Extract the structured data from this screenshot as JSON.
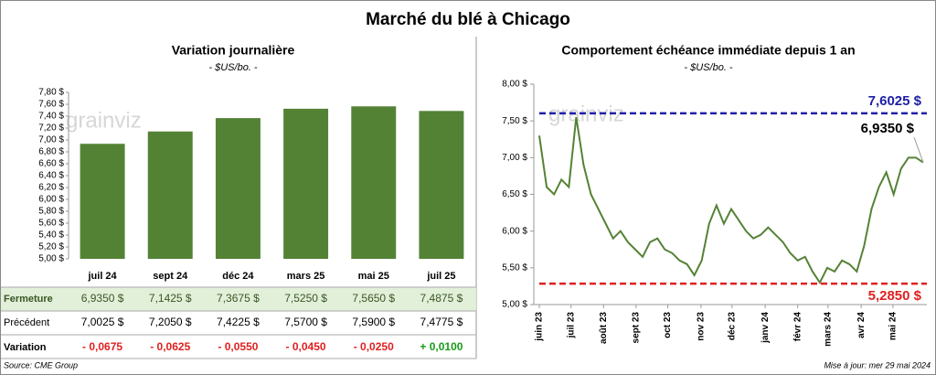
{
  "title": "Marché du blé à Chicago",
  "watermark": "grainviz",
  "chart_data": [
    {
      "type": "bar",
      "title": "Variation journalière",
      "subtitle": "- $US/bo. -",
      "categories": [
        "juil 24",
        "sept 24",
        "déc 24",
        "mars 25",
        "mai 25",
        "juil 25"
      ],
      "values": [
        6.935,
        7.1425,
        7.3675,
        7.525,
        7.565,
        7.4875
      ],
      "value_labels": [
        "6,9350  $",
        "7,1425  $",
        "7,3675  $",
        "7,5250  $",
        "7,5650  $",
        "7,4875  $"
      ],
      "color": "#548235",
      "ylim": [
        5.0,
        7.8
      ],
      "yticks": [
        {
          "value": 5.0,
          "label": "5,00 $"
        },
        {
          "value": 5.2,
          "label": "5,20 $"
        },
        {
          "value": 5.4,
          "label": "5,40 $"
        },
        {
          "value": 5.6,
          "label": "5,60 $"
        },
        {
          "value": 5.8,
          "label": "5,80 $"
        },
        {
          "value": 6.0,
          "label": "6,00 $"
        },
        {
          "value": 6.2,
          "label": "6,20 $"
        },
        {
          "value": 6.4,
          "label": "6,40 $"
        },
        {
          "value": 6.6,
          "label": "6,60 $"
        },
        {
          "value": 6.8,
          "label": "6,80 $"
        },
        {
          "value": 7.0,
          "label": "7,00 $"
        },
        {
          "value": 7.2,
          "label": "7,20 $"
        },
        {
          "value": 7.4,
          "label": "7,40 $"
        },
        {
          "value": 7.6,
          "label": "7,60 $"
        },
        {
          "value": 7.8,
          "label": "7,80 $"
        }
      ],
      "grid": false
    },
    {
      "type": "line",
      "title": "Comportement  échéance immédiate depuis 1 an",
      "subtitle": "- $US/bo. -",
      "series": [
        {
          "name": "Échéance immédiate",
          "color": "#548235",
          "values": [
            7.3,
            6.6,
            6.5,
            6.7,
            6.6,
            7.55,
            6.9,
            6.5,
            6.3,
            6.1,
            5.9,
            6.0,
            5.85,
            5.75,
            5.65,
            5.85,
            5.9,
            5.75,
            5.7,
            5.6,
            5.55,
            5.4,
            5.6,
            6.1,
            6.35,
            6.1,
            6.3,
            6.15,
            6.0,
            5.9,
            5.95,
            6.05,
            5.95,
            5.85,
            5.7,
            5.6,
            5.65,
            5.45,
            5.3,
            5.5,
            5.45,
            5.6,
            5.55,
            5.45,
            5.8,
            6.3,
            6.6,
            6.8,
            6.5,
            6.85,
            7.0,
            7.0,
            6.935
          ]
        }
      ],
      "last_label": "6,9350 $",
      "reference_lines": [
        {
          "value": 7.6025,
          "label": "7,6025 $",
          "color": "#1f1fa6"
        },
        {
          "value": 5.285,
          "label": "5,2850 $",
          "color": "#e02020"
        }
      ],
      "xlim": [
        0,
        52
      ],
      "xticks": [
        {
          "value": 0,
          "label": "juin 23"
        },
        {
          "value": 4.3,
          "label": "juil 23"
        },
        {
          "value": 8.7,
          "label": "août 23"
        },
        {
          "value": 13.1,
          "label": "sept 23"
        },
        {
          "value": 17.4,
          "label": "oct 23"
        },
        {
          "value": 21.9,
          "label": "nov 23"
        },
        {
          "value": 26.1,
          "label": "déc 23"
        },
        {
          "value": 30.6,
          "label": "janv 24"
        },
        {
          "value": 35.0,
          "label": "févr 24"
        },
        {
          "value": 39.1,
          "label": "mars 24"
        },
        {
          "value": 43.6,
          "label": "avr 24"
        },
        {
          "value": 47.9,
          "label": "mai 24"
        }
      ],
      "ylim": [
        5.0,
        8.0
      ],
      "yticks": [
        {
          "value": 5.0,
          "label": "5,00 $"
        },
        {
          "value": 5.5,
          "label": "5,50 $"
        },
        {
          "value": 6.0,
          "label": "6,00 $"
        },
        {
          "value": 6.5,
          "label": "6,50 $"
        },
        {
          "value": 7.0,
          "label": "7,00 $"
        },
        {
          "value": 7.5,
          "label": "7,50 $"
        },
        {
          "value": 8.0,
          "label": "8,00 $"
        }
      ]
    }
  ],
  "table": {
    "rows": [
      {
        "label": "Fermeture"
      },
      {
        "label": "Précédent",
        "cells": [
          "7,0025  $",
          "7,2050  $",
          "7,4225  $",
          "7,5700  $",
          "7,5900  $",
          "7,4775  $"
        ]
      },
      {
        "label": "Variation",
        "values": [
          -0.0675,
          -0.0625,
          -0.055,
          -0.045,
          -0.025,
          0.01
        ],
        "value_labels": [
          "- 0,0675",
          "- 0,0625",
          "- 0,0550",
          "- 0,0450",
          "- 0,0250",
          "+ 0,0100"
        ]
      }
    ]
  },
  "footer": {
    "source": "Source: CME Group",
    "updated": "Mise à jour: mer 29 mai 2024"
  }
}
